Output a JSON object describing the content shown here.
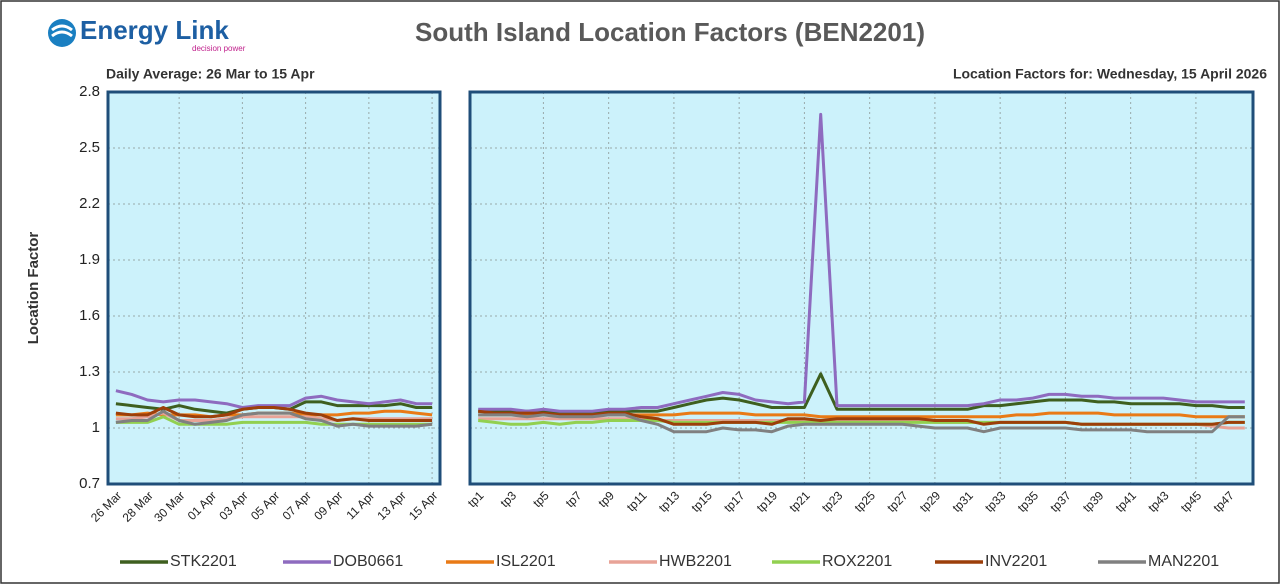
{
  "logo": {
    "name": "Energy Link",
    "tagline": "decision power"
  },
  "title": "South Island Location Factors (BEN2201)",
  "chart_data": [
    {
      "type": "line",
      "subtitle": "Daily Average: 26 Mar to 15 Apr",
      "y_label": "Location Factor",
      "categories": [
        "26 Mar",
        null,
        "28 Mar",
        null,
        "30 Mar",
        null,
        "01 Apr",
        null,
        "03 Apr",
        null,
        "05 Apr",
        null,
        "07 Apr",
        null,
        "09 Apr",
        null,
        "11 Apr",
        null,
        "13 Apr",
        null,
        "15 Apr"
      ],
      "ylim": [
        0.7,
        2.8
      ],
      "yticks": [
        0.7,
        1,
        1.3,
        1.6,
        1.9,
        2.2,
        2.5,
        2.8
      ],
      "grid": true,
      "series": [
        {
          "name": "STK2201",
          "color": "#3e5f1f",
          "values": [
            1.13,
            1.12,
            1.11,
            1.1,
            1.12,
            1.1,
            1.09,
            1.08,
            1.1,
            1.11,
            1.11,
            1.1,
            1.14,
            1.14,
            1.12,
            1.12,
            1.12,
            1.12,
            1.13,
            1.11,
            1.11
          ]
        },
        {
          "name": "DOB0661",
          "color": "#8e6bbf",
          "values": [
            1.2,
            1.18,
            1.15,
            1.14,
            1.15,
            1.15,
            1.14,
            1.13,
            1.11,
            1.12,
            1.12,
            1.12,
            1.16,
            1.17,
            1.15,
            1.14,
            1.13,
            1.14,
            1.15,
            1.13,
            1.13
          ]
        },
        {
          "name": "ISL2201",
          "color": "#e97a16",
          "values": [
            1.07,
            1.07,
            1.08,
            1.07,
            1.07,
            1.07,
            1.06,
            1.07,
            1.07,
            1.08,
            1.08,
            1.08,
            1.07,
            1.07,
            1.07,
            1.08,
            1.08,
            1.09,
            1.09,
            1.08,
            1.07
          ]
        },
        {
          "name": "HWB2201",
          "color": "#e8a397",
          "values": [
            1.05,
            1.05,
            1.06,
            1.08,
            1.04,
            1.04,
            1.04,
            1.05,
            1.06,
            1.06,
            1.06,
            1.06,
            1.06,
            1.05,
            1.04,
            1.05,
            1.05,
            1.05,
            1.05,
            1.05,
            1.05
          ]
        },
        {
          "name": "ROX2201",
          "color": "#92d050",
          "values": [
            1.03,
            1.03,
            1.03,
            1.06,
            1.02,
            1.02,
            1.02,
            1.02,
            1.03,
            1.03,
            1.03,
            1.03,
            1.03,
            1.02,
            1.02,
            1.02,
            1.02,
            1.02,
            1.02,
            1.02,
            1.02
          ]
        },
        {
          "name": "INV2201",
          "color": "#9c3f0a",
          "values": [
            1.08,
            1.07,
            1.07,
            1.11,
            1.07,
            1.06,
            1.06,
            1.07,
            1.1,
            1.11,
            1.11,
            1.1,
            1.08,
            1.07,
            1.04,
            1.05,
            1.04,
            1.04,
            1.04,
            1.04,
            1.04
          ]
        },
        {
          "name": "MAN2201",
          "color": "#808080",
          "values": [
            1.03,
            1.04,
            1.04,
            1.09,
            1.04,
            1.02,
            1.03,
            1.04,
            1.07,
            1.08,
            1.08,
            1.08,
            1.05,
            1.04,
            1.01,
            1.02,
            1.01,
            1.01,
            1.01,
            1.01,
            1.02
          ]
        }
      ]
    },
    {
      "type": "line",
      "subtitle": "Location Factors for: Wednesday, 15 April 2026",
      "categories": [
        "tp1",
        null,
        "tp3",
        null,
        "tp5",
        null,
        "tp7",
        null,
        "tp9",
        null,
        "tp11",
        null,
        "tp13",
        null,
        "tp15",
        null,
        "tp17",
        null,
        "tp19",
        null,
        "tp21",
        null,
        "tp23",
        null,
        "tp25",
        null,
        "tp27",
        null,
        "tp29",
        null,
        "tp31",
        null,
        "tp33",
        null,
        "tp35",
        null,
        "tp37",
        null,
        "tp39",
        null,
        "tp41",
        null,
        "tp43",
        null,
        "tp45",
        null,
        "tp47",
        null
      ],
      "ylim": [
        0.7,
        2.8
      ],
      "yticks": [
        0.7,
        1,
        1.3,
        1.6,
        1.9,
        2.2,
        2.5,
        2.8
      ],
      "grid": true,
      "series": [
        {
          "values": [
            1.09,
            1.09,
            1.09,
            1.09,
            1.09,
            1.08,
            1.08,
            1.08,
            1.09,
            1.09,
            1.09,
            1.09,
            1.11,
            1.13,
            1.15,
            1.16,
            1.15,
            1.13,
            1.11,
            1.11,
            1.11,
            1.29,
            1.1,
            1.1,
            1.1,
            1.1,
            1.1,
            1.1,
            1.1,
            1.1,
            1.1,
            1.12,
            1.12,
            1.13,
            1.14,
            1.15,
            1.15,
            1.15,
            1.14,
            1.14,
            1.13,
            1.13,
            1.13,
            1.13,
            1.12,
            1.12,
            1.11,
            1.11
          ]
        },
        {
          "values": [
            1.1,
            1.1,
            1.1,
            1.09,
            1.1,
            1.09,
            1.09,
            1.09,
            1.1,
            1.1,
            1.11,
            1.11,
            1.13,
            1.15,
            1.17,
            1.19,
            1.18,
            1.15,
            1.14,
            1.13,
            1.14,
            2.68,
            1.12,
            1.12,
            1.12,
            1.12,
            1.12,
            1.12,
            1.12,
            1.12,
            1.12,
            1.13,
            1.15,
            1.15,
            1.16,
            1.18,
            1.18,
            1.17,
            1.17,
            1.16,
            1.16,
            1.16,
            1.16,
            1.15,
            1.14,
            1.14,
            1.14,
            1.14
          ]
        },
        {
          "values": [
            1.07,
            1.07,
            1.07,
            1.07,
            1.07,
            1.07,
            1.07,
            1.07,
            1.07,
            1.07,
            1.07,
            1.07,
            1.07,
            1.08,
            1.08,
            1.08,
            1.08,
            1.07,
            1.07,
            1.07,
            1.07,
            1.06,
            1.06,
            1.06,
            1.06,
            1.06,
            1.06,
            1.06,
            1.06,
            1.06,
            1.06,
            1.06,
            1.06,
            1.07,
            1.07,
            1.08,
            1.08,
            1.08,
            1.08,
            1.07,
            1.07,
            1.07,
            1.07,
            1.07,
            1.06,
            1.06,
            1.06,
            1.06
          ]
        },
        {
          "values": [
            1.05,
            1.05,
            1.05,
            1.05,
            1.05,
            1.05,
            1.05,
            1.05,
            1.05,
            1.05,
            1.05,
            1.04,
            1.04,
            1.04,
            1.04,
            1.04,
            1.04,
            1.04,
            1.04,
            1.04,
            1.04,
            1.04,
            1.04,
            1.04,
            1.04,
            1.04,
            1.04,
            1.04,
            1.03,
            1.03,
            1.03,
            1.03,
            1.03,
            1.03,
            1.03,
            1.03,
            1.03,
            1.02,
            1.02,
            1.02,
            1.02,
            1.02,
            1.02,
            1.02,
            1.02,
            1.01,
            1.0,
            1.0
          ]
        },
        {
          "values": [
            1.04,
            1.03,
            1.02,
            1.02,
            1.03,
            1.02,
            1.03,
            1.03,
            1.04,
            1.04,
            1.04,
            1.04,
            1.03,
            1.03,
            1.03,
            1.03,
            1.03,
            1.03,
            1.03,
            1.03,
            1.03,
            1.03,
            1.03,
            1.03,
            1.03,
            1.03,
            1.03,
            1.03,
            1.03,
            1.03,
            1.03,
            1.03,
            1.03,
            1.03,
            1.03,
            1.03,
            1.03,
            1.02,
            1.02,
            1.02,
            1.02,
            1.02,
            1.02,
            1.02,
            1.02,
            1.02,
            1.03,
            1.03
          ]
        },
        {
          "values": [
            1.09,
            1.08,
            1.08,
            1.08,
            1.08,
            1.07,
            1.07,
            1.07,
            1.08,
            1.08,
            1.06,
            1.05,
            1.02,
            1.02,
            1.02,
            1.03,
            1.03,
            1.03,
            1.02,
            1.05,
            1.05,
            1.04,
            1.05,
            1.05,
            1.05,
            1.05,
            1.05,
            1.05,
            1.04,
            1.04,
            1.04,
            1.02,
            1.03,
            1.03,
            1.03,
            1.03,
            1.03,
            1.02,
            1.02,
            1.02,
            1.02,
            1.02,
            1.02,
            1.02,
            1.02,
            1.02,
            1.03,
            1.03
          ]
        },
        {
          "values": [
            1.07,
            1.07,
            1.07,
            1.06,
            1.07,
            1.06,
            1.06,
            1.06,
            1.07,
            1.07,
            1.04,
            1.02,
            0.98,
            0.98,
            0.98,
            1.0,
            0.99,
            0.99,
            0.98,
            1.01,
            1.02,
            1.02,
            1.02,
            1.02,
            1.02,
            1.02,
            1.02,
            1.01,
            1.0,
            1.0,
            1.0,
            0.98,
            1.0,
            1.0,
            1.0,
            1.0,
            1.0,
            0.99,
            0.99,
            0.99,
            0.99,
            0.98,
            0.98,
            0.98,
            0.98,
            0.98,
            1.06,
            1.06
          ]
        }
      ]
    }
  ]
}
